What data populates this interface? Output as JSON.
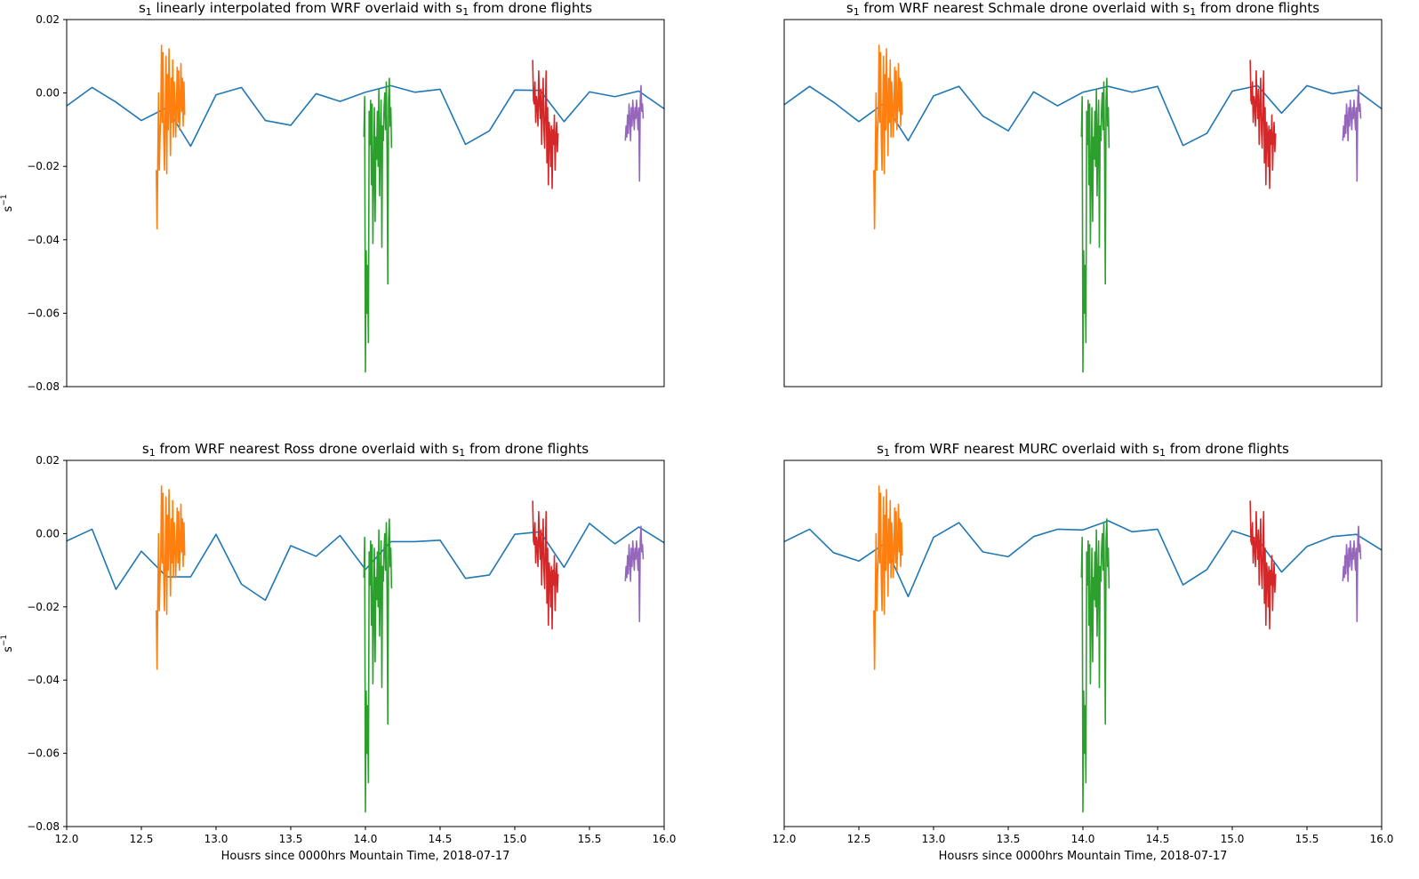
{
  "colors": {
    "wrf": "#1f77b4",
    "drone_flights": [
      "#ff7f0e",
      "#2ca02c",
      "#d62728",
      "#9467bd"
    ]
  },
  "chart_data": [
    {
      "type": "line",
      "title_parts": [
        "s",
        "1",
        " linearly interpolated from WRF overlaid with s",
        "1",
        " from drone flights"
      ],
      "ylabel_parts": [
        "s",
        "−1"
      ],
      "xlabel": "",
      "xlim": [
        12.0,
        16.0
      ],
      "ylim": [
        -0.08,
        0.02
      ],
      "xticks": [],
      "xtick_labels": [],
      "yticks": [
        0.02,
        0.0,
        -0.02,
        -0.04,
        -0.06,
        -0.08
      ],
      "ytick_labels": [
        "0.02",
        "0.00",
        "−0.02",
        "−0.04",
        "−0.06",
        "−0.08"
      ],
      "wrf": {
        "x": [
          12.0,
          12.17,
          12.33,
          12.5,
          12.67,
          12.83,
          13.0,
          13.17,
          13.33,
          13.5,
          13.67,
          13.83,
          14.0,
          14.17,
          14.33,
          14.5,
          14.67,
          14.83,
          15.0,
          15.17,
          15.33,
          15.5,
          15.67,
          15.83,
          16.0
        ],
        "y": [
          -0.0035,
          0.0015,
          -0.0025,
          -0.0075,
          -0.004,
          -0.0145,
          -0.0005,
          0.0015,
          -0.0075,
          -0.0088,
          -0.0002,
          -0.0023,
          0.0002,
          0.002,
          0.0002,
          0.001,
          -0.014,
          -0.0103,
          0.0008,
          0.0007,
          -0.0078,
          0.0003,
          -0.001,
          0.0005,
          -0.0043
        ]
      }
    },
    {
      "type": "line",
      "title_parts": [
        "s",
        "1",
        " from WRF nearest Schmale drone overlaid with s",
        "1",
        " from drone flights"
      ],
      "ylabel_parts": [],
      "xlabel": "",
      "xlim": [
        12.0,
        16.0
      ],
      "ylim": [
        -0.08,
        0.02
      ],
      "xticks": [],
      "xtick_labels": [],
      "yticks": [],
      "ytick_labels": [],
      "wrf": {
        "x": [
          12.0,
          12.17,
          12.33,
          12.5,
          12.67,
          12.83,
          13.0,
          13.17,
          13.33,
          13.5,
          13.67,
          13.83,
          14.0,
          14.17,
          14.33,
          14.5,
          14.67,
          14.83,
          15.0,
          15.17,
          15.33,
          15.5,
          15.67,
          15.83,
          16.0
        ],
        "y": [
          -0.0032,
          0.0018,
          -0.0025,
          -0.0078,
          -0.0028,
          -0.013,
          -0.0008,
          0.0018,
          -0.0063,
          -0.0103,
          0.0003,
          -0.0035,
          0.0002,
          0.0018,
          0.0002,
          0.0018,
          -0.0143,
          -0.011,
          0.0005,
          0.002,
          -0.0055,
          0.002,
          -0.0002,
          0.0008,
          -0.0043
        ]
      }
    },
    {
      "type": "line",
      "title_parts": [
        "s",
        "1",
        " from WRF nearest Ross drone overlaid with s",
        "1",
        " from drone flights"
      ],
      "ylabel_parts": [
        "s",
        "−1"
      ],
      "xlabel": "Housrs since 0000hrs Mountain Time, 2018-07-17",
      "xlim": [
        12.0,
        16.0
      ],
      "ylim": [
        -0.08,
        0.02
      ],
      "xticks": [
        12.0,
        12.5,
        13.0,
        13.5,
        14.0,
        14.5,
        15.0,
        15.5,
        16.0
      ],
      "xtick_labels": [
        "12.0",
        "12.5",
        "13.0",
        "13.5",
        "14.0",
        "14.5",
        "15.0",
        "15.5",
        "16.0"
      ],
      "yticks": [
        0.02,
        0.0,
        -0.02,
        -0.04,
        -0.06,
        -0.08
      ],
      "ytick_labels": [
        "0.02",
        "0.00",
        "−0.02",
        "−0.04",
        "−0.06",
        "−0.08"
      ],
      "wrf": {
        "x": [
          12.0,
          12.17,
          12.33,
          12.5,
          12.67,
          12.83,
          13.0,
          13.17,
          13.33,
          13.5,
          13.67,
          13.83,
          14.0,
          14.17,
          14.33,
          14.5,
          14.67,
          14.83,
          15.0,
          15.17,
          15.33,
          15.5,
          15.67,
          15.83,
          16.0
        ],
        "y": [
          -0.002,
          0.0012,
          -0.0152,
          -0.0048,
          -0.0118,
          -0.0118,
          -0.0002,
          -0.0138,
          -0.0182,
          -0.0033,
          -0.0062,
          -0.0005,
          -0.0098,
          -0.0022,
          -0.0022,
          -0.0018,
          -0.0122,
          -0.0113,
          -0.0002,
          0.0005,
          -0.0092,
          0.0028,
          -0.0028,
          0.0018,
          -0.0025
        ]
      }
    },
    {
      "type": "line",
      "title_parts": [
        "s",
        "1",
        " from WRF nearest MURC overlaid with s",
        "1",
        " from drone flights"
      ],
      "ylabel_parts": [],
      "xlabel": "Housrs since 0000hrs Mountain Time, 2018-07-17",
      "xlim": [
        12.0,
        16.0
      ],
      "ylim": [
        -0.08,
        0.02
      ],
      "xticks": [
        12.0,
        12.5,
        13.0,
        13.5,
        14.0,
        14.5,
        15.0,
        15.5,
        16.0
      ],
      "xtick_labels": [
        "12.0",
        "12.5",
        "13.0",
        "13.5",
        "14.0",
        "14.5",
        "15.0",
        "15.5",
        "16.0"
      ],
      "yticks": [],
      "ytick_labels": [],
      "wrf": {
        "x": [
          12.0,
          12.17,
          12.33,
          12.5,
          12.67,
          12.83,
          13.0,
          13.17,
          13.33,
          13.5,
          13.67,
          13.83,
          14.0,
          14.17,
          14.33,
          14.5,
          14.67,
          14.83,
          15.0,
          15.17,
          15.33,
          15.5,
          15.67,
          15.83,
          16.0
        ],
        "y": [
          -0.0022,
          0.0012,
          -0.0052,
          -0.0075,
          -0.0028,
          -0.0172,
          -0.001,
          0.003,
          -0.005,
          -0.0063,
          -0.0008,
          0.0012,
          0.001,
          0.0035,
          0.0005,
          0.0012,
          -0.014,
          -0.0098,
          0.0008,
          -0.0015,
          -0.0105,
          -0.0035,
          -0.0008,
          -0.0002,
          -0.0045
        ]
      }
    }
  ],
  "drone_flights": [
    {
      "x": [
        12.6,
        12.605,
        12.61,
        12.615,
        12.62,
        12.625,
        12.63,
        12.635,
        12.64,
        12.645,
        12.65,
        12.655,
        12.66,
        12.665,
        12.67,
        12.675,
        12.68,
        12.685,
        12.69,
        12.695,
        12.7,
        12.705,
        12.71,
        12.715,
        12.72,
        12.725,
        12.73,
        12.735,
        12.74,
        12.745,
        12.75,
        12.755,
        12.76,
        12.765,
        12.77,
        12.775,
        12.78,
        12.785,
        12.79
      ],
      "y": [
        -0.021,
        -0.037,
        -0.019,
        0.0,
        -0.021,
        -0.012,
        -0.006,
        0.013,
        -0.008,
        0.011,
        -0.012,
        -0.021,
        -0.005,
        0.01,
        -0.022,
        0.005,
        -0.01,
        0.012,
        -0.002,
        -0.017,
        0.004,
        -0.008,
        0.009,
        -0.012,
        0.003,
        -0.002,
        -0.012,
        -0.004,
        0.007,
        -0.008,
        0.006,
        -0.01,
        -0.003,
        0.008,
        -0.005,
        0.004,
        -0.009,
        0.003,
        -0.006
      ]
    },
    {
      "x": [
        13.99,
        13.995,
        14.0,
        14.005,
        14.01,
        14.015,
        14.02,
        14.025,
        14.03,
        14.035,
        14.04,
        14.045,
        14.05,
        14.055,
        14.06,
        14.065,
        14.07,
        14.075,
        14.08,
        14.085,
        14.09,
        14.095,
        14.1,
        14.105,
        14.11,
        14.115,
        14.12,
        14.125,
        14.13,
        14.135,
        14.14,
        14.145,
        14.15,
        14.155,
        14.16,
        14.165,
        14.17,
        14.175
      ],
      "y": [
        -0.012,
        -0.001,
        -0.076,
        -0.043,
        -0.06,
        -0.047,
        -0.068,
        -0.005,
        -0.014,
        -0.002,
        -0.025,
        -0.003,
        -0.041,
        -0.022,
        -0.004,
        -0.035,
        -0.012,
        -0.018,
        -0.005,
        -0.02,
        0.001,
        -0.028,
        -0.012,
        -0.002,
        -0.042,
        -0.009,
        -0.013,
        -0.004,
        0.0,
        -0.01,
        0.003,
        -0.016,
        -0.052,
        -0.002,
        0.004,
        -0.009,
        -0.004,
        -0.015
      ]
    },
    {
      "x": [
        15.12,
        15.125,
        15.13,
        15.135,
        15.14,
        15.145,
        15.15,
        15.155,
        15.16,
        15.165,
        15.17,
        15.175,
        15.18,
        15.185,
        15.19,
        15.195,
        15.2,
        15.205,
        15.21,
        15.215,
        15.22,
        15.225,
        15.23,
        15.235,
        15.24,
        15.245,
        15.25,
        15.255,
        15.26,
        15.265,
        15.27,
        15.275,
        15.28,
        15.285,
        15.29
      ],
      "y": [
        0.009,
        -0.002,
        -0.003,
        0.003,
        -0.008,
        -0.001,
        -0.003,
        -0.009,
        0.006,
        -0.002,
        -0.007,
        0.001,
        -0.014,
        -0.004,
        0.004,
        -0.01,
        -0.015,
        -0.003,
        0.006,
        -0.019,
        -0.004,
        -0.025,
        -0.008,
        -0.011,
        -0.02,
        -0.009,
        -0.026,
        -0.01,
        -0.014,
        -0.006,
        -0.021,
        -0.012,
        -0.008,
        -0.016,
        -0.011
      ]
    },
    {
      "x": [
        15.74,
        15.745,
        15.75,
        15.755,
        15.76,
        15.765,
        15.77,
        15.775,
        15.78,
        15.785,
        15.79,
        15.795,
        15.8,
        15.805,
        15.81,
        15.815,
        15.82,
        15.825,
        15.83,
        15.835,
        15.84,
        15.845,
        15.85,
        15.855,
        15.86
      ],
      "y": [
        -0.013,
        -0.009,
        -0.012,
        -0.006,
        -0.011,
        -0.003,
        -0.007,
        -0.013,
        -0.004,
        -0.009,
        -0.002,
        -0.006,
        -0.01,
        -0.004,
        -0.007,
        -0.002,
        -0.006,
        -0.01,
        -0.004,
        -0.024,
        -0.002,
        0.002,
        -0.005,
        -0.003,
        -0.007
      ]
    }
  ]
}
